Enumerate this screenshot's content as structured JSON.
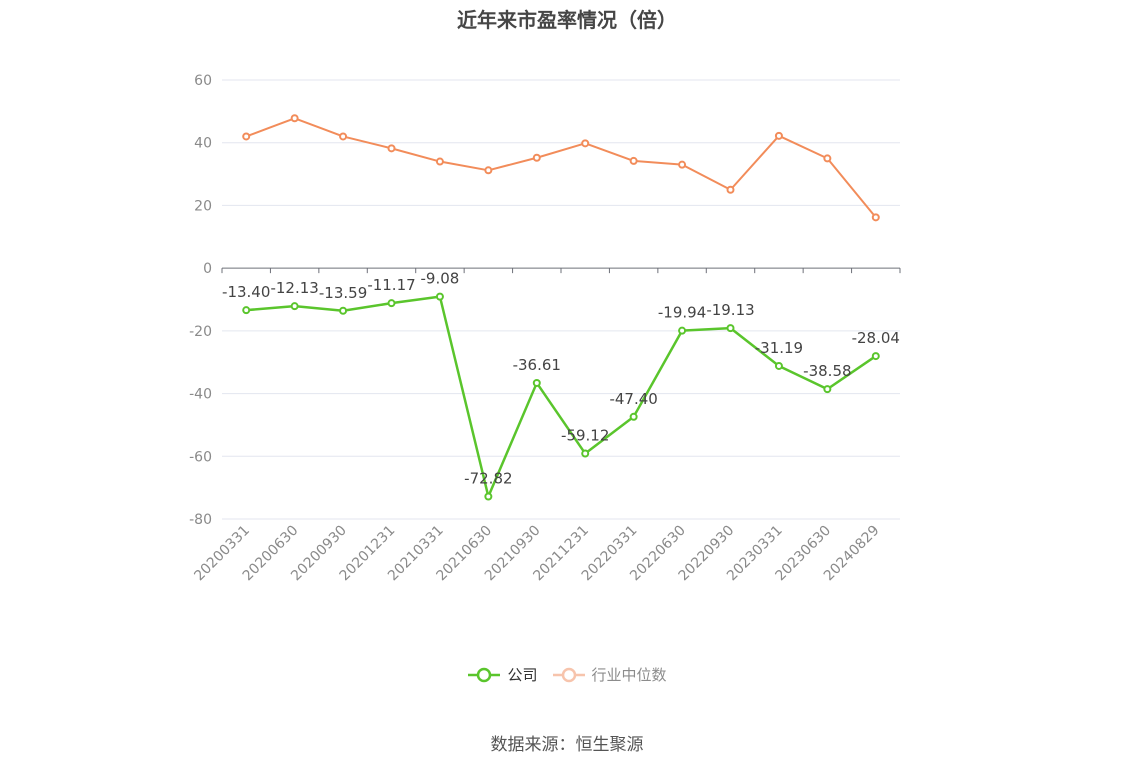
{
  "title": "近年来市盈率情况（倍）",
  "source": "数据来源：恒生聚源",
  "chart_data": {
    "type": "line",
    "title": "近年来市盈率情况（倍）",
    "categories": [
      "20200331",
      "20200630",
      "20200930",
      "20201231",
      "20210331",
      "20210630",
      "20210930",
      "20211231",
      "20220331",
      "20220630",
      "20220930",
      "20230331",
      "20230630",
      "20240829"
    ],
    "ylim": [
      -80,
      60
    ],
    "yticks": [
      60,
      40,
      20,
      0,
      -20,
      -40,
      -60,
      -80
    ],
    "grid": true,
    "legend_position": "bottom",
    "series": [
      {
        "name": "公司",
        "color": "#5ac52c",
        "values": [
          -13.4,
          -12.13,
          -13.59,
          -11.17,
          -9.08,
          -72.82,
          -36.61,
          -59.12,
          -47.4,
          -19.94,
          -19.13,
          -31.19,
          -38.58,
          -28.04
        ],
        "labels": [
          "-13.40",
          "-12.13",
          "-13.59",
          "-11.17",
          "-9.08",
          "-72.82",
          "-36.61",
          "-59.12",
          "-47.40",
          "-19.94",
          "-19.13",
          "-31.19",
          "-38.58",
          "-28.04"
        ]
      },
      {
        "name": "行业中位数",
        "color": "#f28c5a",
        "values": [
          42,
          47.8,
          42,
          38.2,
          34,
          31.2,
          35.2,
          39.8,
          34.2,
          33,
          25,
          42.2,
          35,
          16.2
        ]
      }
    ]
  }
}
